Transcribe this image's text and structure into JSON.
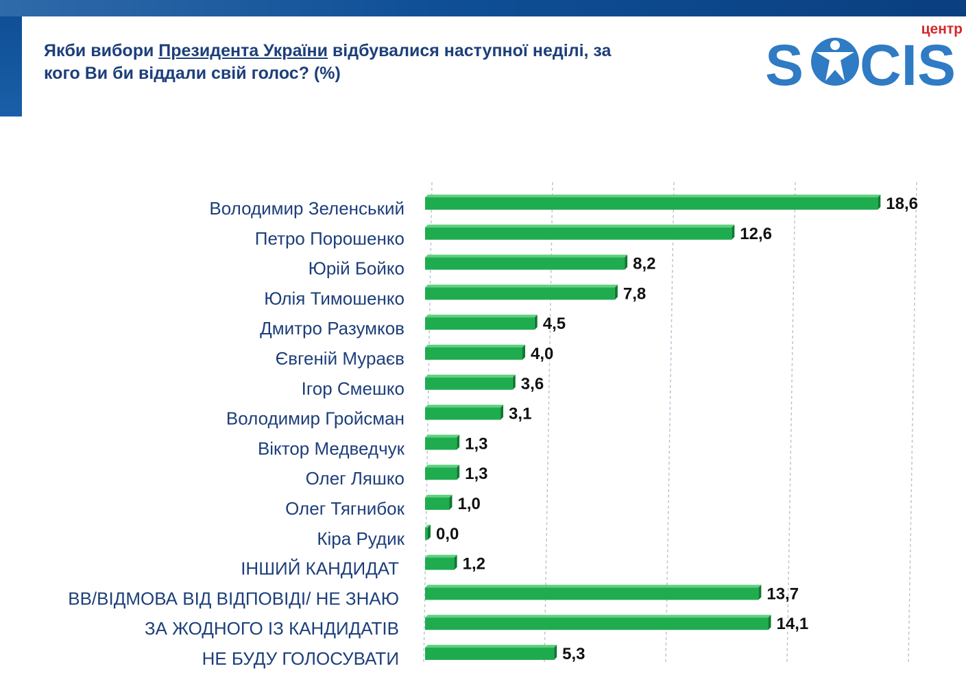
{
  "header": {
    "title_part1": "Якби вибори ",
    "title_underlined": "Президента України",
    "title_part2": " відбувалися наступної неділі, за",
    "title_line2": "кого Ви би віддали свій голос? (%)"
  },
  "logo": {
    "small_text": "центр",
    "main_left": "S",
    "main_right": "CIS",
    "icon": "person-star-icon"
  },
  "colors": {
    "bar": "#1fac4f",
    "bar_dark": "#0f7a30",
    "label": "#1d3f7a",
    "value": "#111111",
    "logo_blue": "#2f7bc4",
    "logo_red": "#d62828",
    "grid": "#b9c4d4"
  },
  "chart_data": {
    "type": "bar",
    "orientation": "horizontal",
    "grid": true,
    "categories": [
      "Володимир Зеленський",
      "Петро Порошенко",
      "Юрій Бойко",
      "Юлія Тимошенко",
      "Дмитро Разумков",
      "Євгеній Мураєв",
      "Ігор Смешко",
      "Володимир Гройсман",
      "Віктор Медведчук",
      "Олег Ляшко",
      "Олег Тягнибок",
      "Кіра Рудик",
      "ІНШИЙ КАНДИДАТ",
      "ВВ/ВІДМОВА ВІД ВІДПОВІДІ/ НЕ ЗНАЮ",
      "ЗА ЖОДНОГО ІЗ КАНДИДАТІВ",
      "НЕ БУДУ ГОЛОСУВАТИ"
    ],
    "values": [
      18.6,
      12.6,
      8.2,
      7.8,
      4.5,
      4.0,
      3.6,
      3.1,
      1.3,
      1.3,
      1.0,
      0.0,
      1.2,
      13.7,
      14.1,
      5.3
    ],
    "value_labels": [
      "18,6",
      "12,6",
      "8,2",
      "7,8",
      "4,5",
      "4,0",
      "3,6",
      "3,1",
      "1,3",
      "1,3",
      "1,0",
      "0,0",
      "1,2",
      "13,7",
      "14,1",
      "5,3"
    ],
    "xlim": [
      0,
      20
    ]
  }
}
